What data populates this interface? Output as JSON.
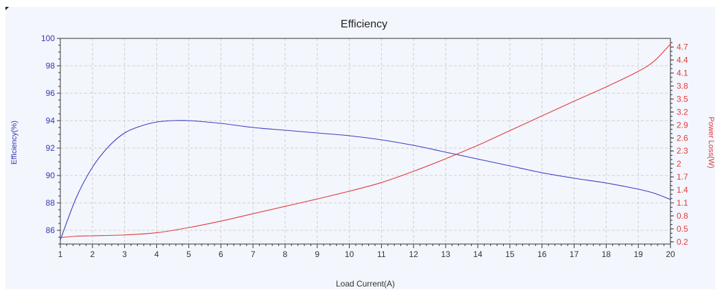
{
  "chart_data": {
    "type": "line",
    "title": "Efficiency",
    "xlabel": "Load Current(A)",
    "ylabel_left": "Efficiency(%)",
    "ylabel_right": "Power Loss(W)",
    "xlim": [
      1,
      20
    ],
    "ylim_left": [
      85,
      100
    ],
    "ylim_right": [
      0.15,
      4.9
    ],
    "x_ticks": [
      "1",
      "2",
      "3",
      "4",
      "5",
      "6",
      "7",
      "8",
      "9",
      "10",
      "11",
      "12",
      "13",
      "14",
      "15",
      "16",
      "17",
      "18",
      "19",
      "20"
    ],
    "y_left_ticks": [
      "86",
      "88",
      "90",
      "92",
      "94",
      "96",
      "98",
      "100"
    ],
    "y_right_ticks": [
      "0.2",
      "0.5",
      "0.8",
      "1.1",
      "1.4",
      "1.7",
      "2",
      "2.3",
      "2.6",
      "2.9",
      "3.2",
      "3.5",
      "3.8",
      "4.1",
      "4.4",
      "4.7"
    ],
    "grid": true,
    "series": [
      {
        "name": "Efficiency(%)",
        "axis": "left",
        "color": "#3a3ac0",
        "x": [
          1,
          1.5,
          2,
          2.5,
          3,
          3.5,
          4,
          4.5,
          5,
          6,
          7,
          8,
          9,
          10,
          11,
          12,
          13,
          14,
          15,
          16,
          17,
          18,
          19,
          19.5,
          20
        ],
        "y": [
          85.3,
          88.4,
          90.6,
          92.1,
          93.1,
          93.6,
          93.9,
          94.0,
          94.0,
          93.8,
          93.5,
          93.3,
          93.1,
          92.9,
          92.6,
          92.2,
          91.7,
          91.2,
          90.7,
          90.2,
          89.8,
          89.45,
          89.0,
          88.7,
          88.25
        ]
      },
      {
        "name": "Power Loss(W)",
        "axis": "right",
        "color": "#e03a3a",
        "x": [
          1,
          1.5,
          2,
          3,
          4,
          5,
          6,
          7,
          8,
          9,
          10,
          11,
          12,
          13,
          14,
          15,
          16,
          17,
          18,
          19,
          19.5,
          20
        ],
        "y": [
          0.3,
          0.33,
          0.34,
          0.36,
          0.41,
          0.53,
          0.68,
          0.85,
          1.02,
          1.19,
          1.37,
          1.57,
          1.83,
          2.12,
          2.43,
          2.77,
          3.11,
          3.45,
          3.78,
          4.14,
          4.38,
          4.77
        ]
      }
    ]
  }
}
